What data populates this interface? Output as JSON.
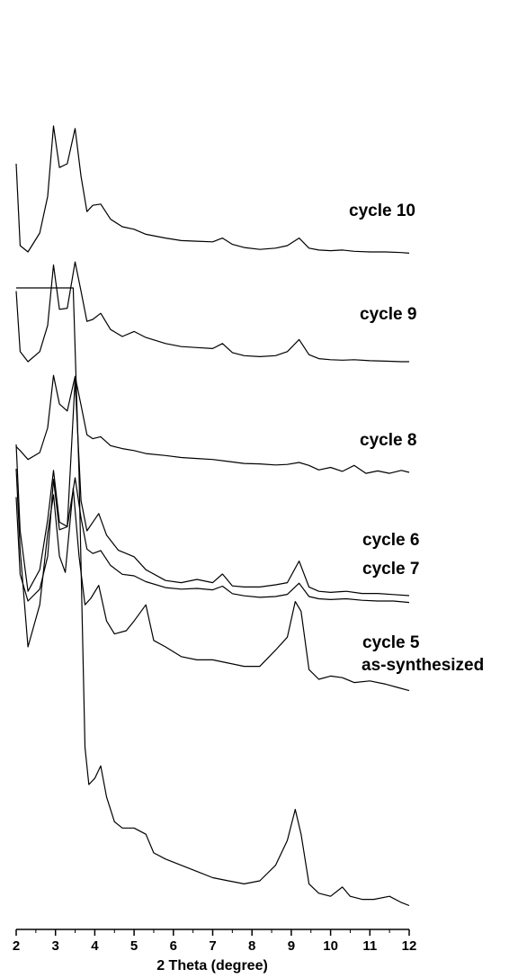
{
  "chart_data": {
    "type": "line",
    "title": "",
    "xlabel": "2 Theta (degree)",
    "ylabel": "",
    "xlim": [
      2,
      12
    ],
    "xticks": [
      "2",
      "3",
      "4",
      "5",
      "6",
      "7",
      "8",
      "9",
      "10",
      "11",
      "12"
    ],
    "grid": false,
    "legend": "inline labels at right of each trace",
    "note_intensity": "relative intensity (arbitrary units, 0 = trace baseline, 100 = tallest peak); y axis unlabeled, traces vertically offset",
    "series": [
      {
        "name": "as-synthesized",
        "x": [
          2.0,
          2.9,
          3.2,
          3.35,
          3.45,
          3.6,
          3.75,
          3.85,
          4.0,
          4.15,
          4.3,
          4.5,
          4.7,
          5.0,
          5.3,
          5.5,
          5.8,
          6.2,
          6.6,
          7.0,
          7.4,
          7.8,
          8.2,
          8.6,
          8.9,
          9.1,
          9.25,
          9.45,
          9.7,
          10.0,
          10.3,
          10.5,
          10.8,
          11.1,
          11.5,
          11.8,
          12.0
        ],
        "y": [
          100,
          100,
          100,
          100,
          100,
          70,
          26,
          20,
          21,
          23,
          18,
          14,
          13,
          13,
          12,
          9,
          8,
          7,
          6,
          5,
          4.5,
          4,
          4.5,
          7,
          11,
          16,
          12,
          4,
          2.5,
          2,
          3.5,
          2,
          1.5,
          1.5,
          2,
          1,
          0.5
        ]
      },
      {
        "name": "cycle 5",
        "x": [
          2.0,
          2.1,
          2.3,
          2.6,
          2.8,
          2.95,
          3.1,
          3.25,
          3.45,
          3.6,
          3.75,
          3.9,
          4.1,
          4.3,
          4.5,
          4.8,
          5.0,
          5.3,
          5.5,
          5.8,
          6.2,
          6.6,
          7.0,
          7.4,
          7.8,
          8.2,
          8.6,
          8.9,
          9.1,
          9.25,
          9.45,
          9.7,
          10.0,
          10.3,
          10.6,
          11.0,
          11.4,
          11.7,
          12.0
        ],
        "y": [
          70,
          45,
          15,
          28,
          50,
          62,
          43,
          38,
          64,
          43,
          28,
          30,
          34,
          23,
          19,
          20,
          23,
          28,
          17,
          15,
          12,
          11,
          11,
          10,
          9,
          9,
          14,
          18,
          29,
          26,
          8,
          5,
          6,
          5.5,
          4,
          4.5,
          3.5,
          2.5,
          1.5
        ]
      },
      {
        "name": "cycle 6",
        "x": [
          2.0,
          2.1,
          2.3,
          2.6,
          2.8,
          2.95,
          3.1,
          3.3,
          3.5,
          3.65,
          3.8,
          3.95,
          4.1,
          4.3,
          4.6,
          5.0,
          5.3,
          5.8,
          6.2,
          6.6,
          7.0,
          7.25,
          7.5,
          7.8,
          8.2,
          8.6,
          8.9,
          9.2,
          9.45,
          9.7,
          10.0,
          10.4,
          10.8,
          11.2,
          11.6,
          12.0
        ],
        "y": [
          70,
          30,
          2,
          12,
          35,
          58,
          34,
          32,
          100,
          44,
          30,
          34,
          38,
          28,
          21,
          18,
          12,
          7,
          6,
          7.5,
          6,
          10,
          4.5,
          4,
          4,
          5,
          6,
          16,
          4,
          2,
          1.5,
          2,
          1,
          1,
          0.5,
          0
        ]
      },
      {
        "name": "cycle 7",
        "x": [
          2.0,
          2.1,
          2.3,
          2.6,
          2.8,
          2.95,
          3.1,
          3.3,
          3.5,
          3.65,
          3.8,
          3.95,
          4.15,
          4.4,
          4.7,
          5.0,
          5.3,
          5.8,
          6.2,
          6.6,
          7.0,
          7.25,
          7.5,
          7.8,
          8.2,
          8.6,
          8.9,
          9.2,
          9.45,
          9.7,
          10.0,
          10.4,
          10.8,
          11.2,
          11.6,
          12.0
        ],
        "y": [
          70,
          18,
          0,
          8,
          30,
          82,
          48,
          50,
          83,
          56,
          35,
          32,
          34,
          24,
          18,
          17,
          13,
          9,
          8,
          8.5,
          7.5,
          10,
          5,
          3.5,
          2.5,
          3,
          4.5,
          12,
          3,
          1.5,
          1,
          1.5,
          0.5,
          0,
          0,
          -1
        ]
      },
      {
        "name": "cycle 8",
        "x": [
          2.0,
          2.1,
          2.3,
          2.6,
          2.8,
          2.95,
          3.1,
          3.3,
          3.5,
          3.65,
          3.8,
          3.95,
          4.15,
          4.4,
          4.7,
          5.0,
          5.3,
          5.8,
          6.2,
          6.6,
          7.0,
          7.4,
          7.8,
          8.2,
          8.6,
          8.9,
          9.2,
          9.45,
          9.7,
          10.0,
          10.3,
          10.6,
          10.9,
          11.2,
          11.5,
          11.8,
          12.0
        ],
        "y": [
          26,
          22,
          13,
          20,
          45,
          98,
          69,
          62,
          97,
          68,
          38,
          34,
          36,
          27,
          24,
          22,
          19,
          17,
          15,
          14,
          13,
          11,
          9,
          8.5,
          7.5,
          8,
          10,
          7,
          2.5,
          5,
          1,
          7,
          -1,
          1.5,
          -1,
          2,
          0
        ]
      },
      {
        "name": "cycle 9",
        "x": [
          2.0,
          2.1,
          2.3,
          2.6,
          2.8,
          2.95,
          3.1,
          3.3,
          3.5,
          3.65,
          3.8,
          3.95,
          4.15,
          4.4,
          4.7,
          5.0,
          5.3,
          5.8,
          6.2,
          6.6,
          7.0,
          7.25,
          7.5,
          7.8,
          8.2,
          8.6,
          8.9,
          9.2,
          9.45,
          9.7,
          10.0,
          10.3,
          10.6,
          11.0,
          11.4,
          11.8,
          12.0
        ],
        "y": [
          70,
          10,
          0,
          10,
          36,
          96,
          52,
          53,
          99,
          70,
          40,
          42,
          48,
          32,
          25,
          30,
          24,
          18,
          15,
          14,
          13,
          18,
          9,
          6,
          5,
          6,
          10,
          22,
          7,
          3,
          2,
          1.5,
          2,
          1,
          0.5,
          0,
          0
        ]
      },
      {
        "name": "cycle 10",
        "x": [
          2.0,
          2.1,
          2.3,
          2.6,
          2.8,
          2.95,
          3.1,
          3.3,
          3.5,
          3.65,
          3.8,
          3.95,
          4.15,
          4.4,
          4.7,
          5.0,
          5.3,
          5.8,
          6.2,
          6.6,
          7.0,
          7.25,
          7.5,
          7.8,
          8.2,
          8.6,
          8.9,
          9.2,
          9.45,
          9.7,
          10.0,
          10.3,
          10.6,
          11.0,
          11.4,
          11.8,
          12.0
        ],
        "y": [
          70,
          5,
          0,
          15,
          44,
          100,
          67,
          70,
          98,
          60,
          32,
          37,
          38,
          26,
          20,
          18,
          14,
          11,
          9,
          8.5,
          8,
          11,
          6,
          3.5,
          2,
          3,
          5,
          11,
          3,
          1.5,
          1,
          1.5,
          0.5,
          0,
          0,
          -0.5,
          -1
        ]
      }
    ]
  }
}
